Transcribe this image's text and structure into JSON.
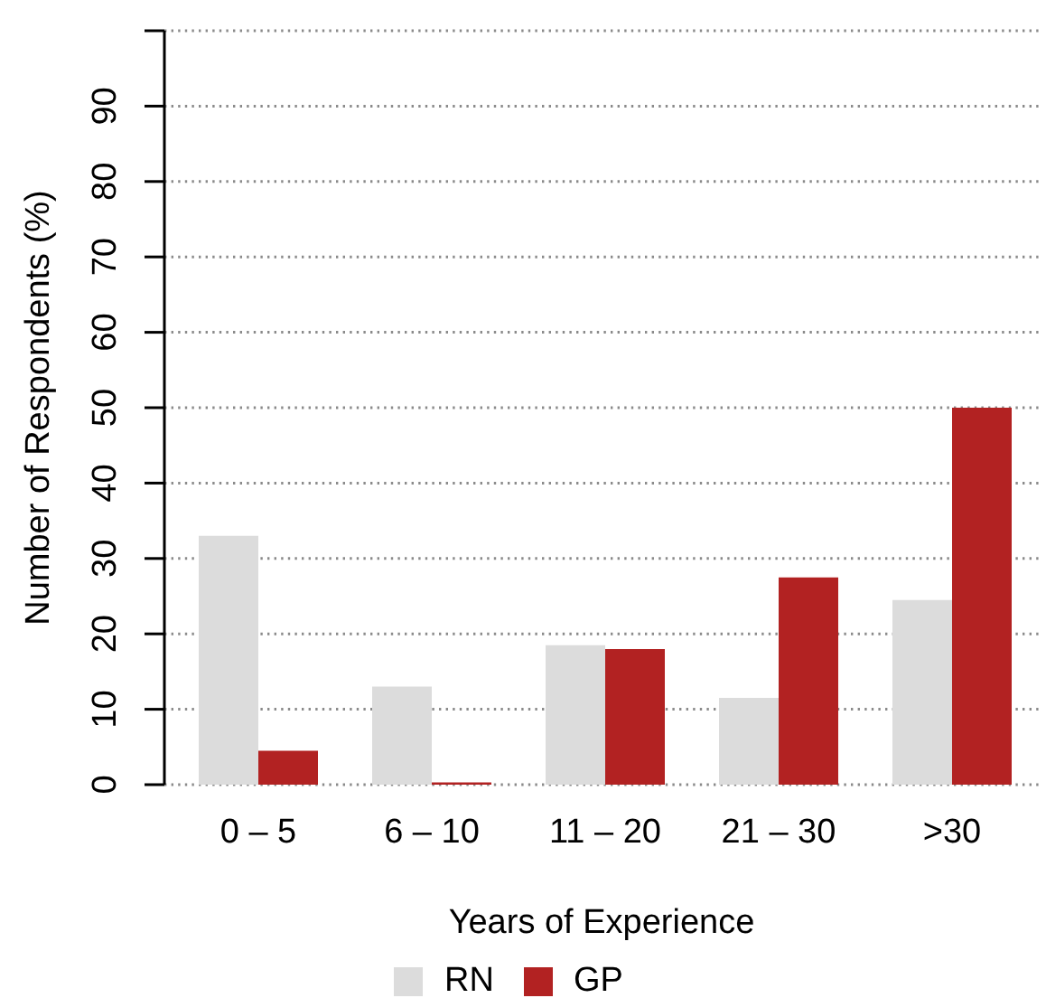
{
  "chart_data": {
    "type": "bar",
    "categories": [
      "0 – 5",
      "6 – 10",
      "11 – 20",
      "21 – 30",
      ">30"
    ],
    "series": [
      {
        "name": "RN",
        "color": "#dcdcdc",
        "values": [
          33,
          13,
          18.5,
          11.5,
          24.5
        ]
      },
      {
        "name": "GP",
        "color": "#b22222",
        "values": [
          4.5,
          0.3,
          18,
          27.5,
          50
        ]
      }
    ],
    "xlabel": "Years of Experience",
    "ylabel": "Number of Respondents (%)",
    "ylim": [
      0,
      100
    ],
    "yticks": [
      0,
      10,
      20,
      30,
      40,
      50,
      60,
      70,
      80,
      90,
      {
        "value": 100,
        "label": null
      }
    ],
    "grid": "y",
    "legend": "bottom"
  }
}
